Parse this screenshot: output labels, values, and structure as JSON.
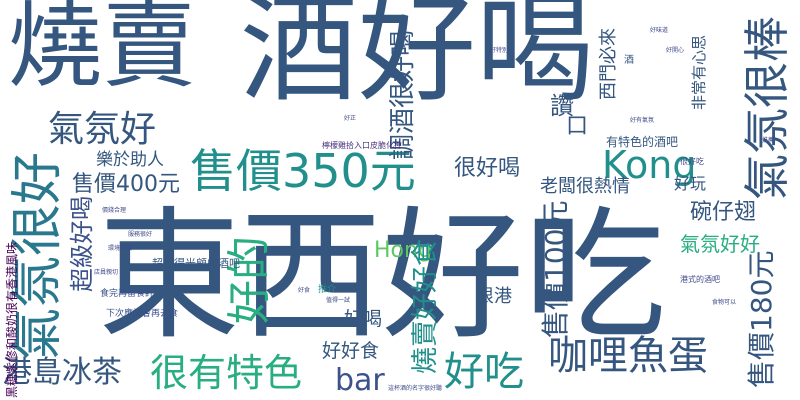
{
  "palette": {
    "navy": "#34567f",
    "blue": "#3b528b",
    "teal": "#21908d",
    "green": "#28ae80",
    "lightgreen": "#5ec962",
    "slate": "#3e4989",
    "purple": "#472f7d",
    "dark": "#440154",
    "lime": "#7ad151"
  },
  "words": [
    {
      "id": "w1",
      "text": "燒賣"
    },
    {
      "id": "w2",
      "text": "酒好喝"
    },
    {
      "id": "w3",
      "text": "東西好吃"
    },
    {
      "id": "w4",
      "text": "氣氛很好"
    },
    {
      "id": "w5",
      "text": "氣氛好"
    },
    {
      "id": "w6",
      "text": "售價350元"
    },
    {
      "id": "w7",
      "text": "售價400元"
    },
    {
      "id": "w8",
      "text": "樂於助人"
    },
    {
      "id": "w9",
      "text": "超級好喝"
    },
    {
      "id": "w10",
      "text": "好的"
    },
    {
      "id": "w11",
      "text": "很有特色"
    },
    {
      "id": "w12",
      "text": "港島冰茶"
    },
    {
      "id": "w13",
      "text": "bar"
    },
    {
      "id": "w14",
      "text": "好吃"
    },
    {
      "id": "w15",
      "text": "咖哩魚蛋"
    },
    {
      "id": "w16",
      "text": "Kong"
    },
    {
      "id": "w17",
      "text": "很好喝"
    },
    {
      "id": "w18",
      "text": "老闆很熱情"
    },
    {
      "id": "w19",
      "text": "Hong"
    },
    {
      "id": "w20",
      "text": "好喝"
    },
    {
      "id": "w21",
      "text": "好好食"
    },
    {
      "id": "w22",
      "text": "燒賣好好食"
    },
    {
      "id": "w23",
      "text": "售價100元"
    },
    {
      "id": "w24",
      "text": "售價180元"
    },
    {
      "id": "w25",
      "text": "氣氛好好"
    },
    {
      "id": "w26",
      "text": "碗仔翅"
    },
    {
      "id": "w27",
      "text": "好玩"
    },
    {
      "id": "w28",
      "text": "氣氛很棒"
    },
    {
      "id": "w29",
      "text": "讚"
    },
    {
      "id": "w30",
      "text": "調酒很好喝"
    },
    {
      "id": "w31",
      "text": "西門必來"
    },
    {
      "id": "w32",
      "text": "非常有心思"
    },
    {
      "id": "w33",
      "text": "有特色的酒吧"
    },
    {
      "id": "w34",
      "text": "很港"
    },
    {
      "id": "w35",
      "text": "超值得光顧的酒吧"
    },
    {
      "id": "w36",
      "text": "食完再留食評"
    },
    {
      "id": "w37",
      "text": "下次應該會再去食"
    },
    {
      "id": "w38",
      "text": "檸檬雞拾入口皮脆化掉"
    },
    {
      "id": "w39",
      "text": "推介"
    },
    {
      "id": "w40",
      "text": "很好吃"
    },
    {
      "id": "w41",
      "text": "港式的酒吧"
    },
    {
      "id": "w42",
      "text": "黑糖紫修和酸奶很有香港風味"
    },
    {
      "id": "w43",
      "text": "這杯酒的名字很好聽"
    },
    {
      "id": "w44",
      "text": "食物可以"
    },
    {
      "id": "w45",
      "text": "服務很好"
    },
    {
      "id": "w46",
      "text": "好食"
    },
    {
      "id": "w47",
      "text": "值得一試"
    },
    {
      "id": "w48",
      "text": "好味道"
    },
    {
      "id": "w49",
      "text": "好開心"
    },
    {
      "id": "w50",
      "text": "好特別"
    },
    {
      "id": "w51",
      "text": "好有氣氛"
    },
    {
      "id": "w52",
      "text": "價錢合理"
    },
    {
      "id": "w53",
      "text": "環境舒服"
    },
    {
      "id": "w54",
      "text": "店員親切"
    },
    {
      "id": "w55",
      "text": "推薦"
    },
    {
      "id": "w56",
      "text": "好正"
    },
    {
      "id": "w57",
      "text": "口"
    },
    {
      "id": "w58",
      "text": "酒"
    }
  ]
}
